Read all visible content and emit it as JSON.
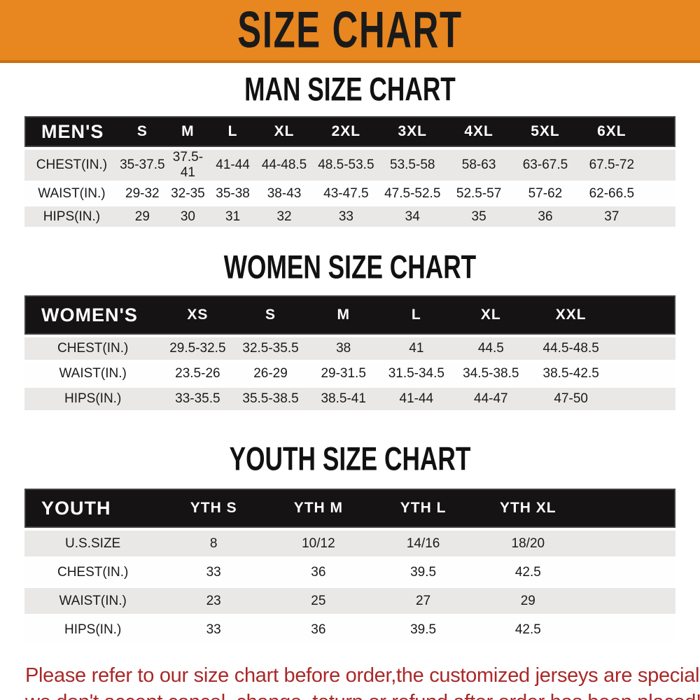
{
  "banner": {
    "title": "SIZE CHART"
  },
  "sections": [
    {
      "title": "MAN SIZE CHART",
      "header": {
        "label": "MEN'S",
        "columns": [
          "S",
          "M",
          "L",
          "XL",
          "2XL",
          "3XL",
          "4XL",
          "5XL",
          "6XL"
        ]
      },
      "rows": [
        {
          "label": "CHEST(IN.)",
          "values": [
            "35-37.5",
            "37.5-41",
            "41-44",
            "44-48.5",
            "48.5-53.5",
            "53.5-58",
            "58-63",
            "63-67.5",
            "67.5-72"
          ]
        },
        {
          "label": "WAIST(IN.)",
          "values": [
            "29-32",
            "32-35",
            "35-38",
            "38-43",
            "43-47.5",
            "47.5-52.5",
            "52.5-57",
            "57-62",
            "62-66.5"
          ]
        },
        {
          "label": "HIPS(IN.)",
          "values": [
            "29",
            "30",
            "31",
            "32",
            "33",
            "34",
            "35",
            "36",
            "37"
          ]
        }
      ]
    },
    {
      "title": "WOMEN SIZE CHART",
      "header": {
        "label": "WOMEN'S",
        "columns": [
          "XS",
          "S",
          "M",
          "L",
          "XL",
          "XXL"
        ]
      },
      "rows": [
        {
          "label": "CHEST(IN.)",
          "values": [
            "29.5-32.5",
            "32.5-35.5",
            "38",
            "41",
            "44.5",
            "44.5-48.5"
          ]
        },
        {
          "label": "WAIST(IN.)",
          "values": [
            "23.5-26",
            "26-29",
            "29-31.5",
            "31.5-34.5",
            "34.5-38.5",
            "38.5-42.5"
          ]
        },
        {
          "label": "HIPS(IN.)",
          "values": [
            "33-35.5",
            "35.5-38.5",
            "38.5-41",
            "41-44",
            "44-47",
            "47-50"
          ]
        }
      ]
    },
    {
      "title": "YOUTH SIZE CHART",
      "header": {
        "label": "YOUTH",
        "columns": [
          "YTH S",
          "YTH M",
          "YTH L",
          "YTH XL"
        ]
      },
      "rows": [
        {
          "label": "U.S.SIZE",
          "values": [
            "8",
            "10/12",
            "14/16",
            "18/20"
          ]
        },
        {
          "label": "CHEST(IN.)",
          "values": [
            "33",
            "36",
            "39.5",
            "42.5"
          ]
        },
        {
          "label": "WAIST(IN.)",
          "values": [
            "23",
            "25",
            "27",
            "29"
          ]
        },
        {
          "label": "HIPS(IN.)",
          "values": [
            "33",
            "36",
            "39.5",
            "42.5"
          ]
        }
      ]
    }
  ],
  "footer": {
    "line1": "Please refer to our size chart before order,the customized jerseys are special products,",
    "line2": "we don't accept cancel, change, teturn or refund after order has been placed!"
  },
  "colors": {
    "banner_bg": "#E8861F",
    "banner_edge": "#C96F12",
    "banner_text": "#1A1A1A",
    "header_bar_bg": "#151313",
    "header_bar_text": "#FFFFFF",
    "stripe_gray": "#E9E8E6",
    "stripe_white": "#FEFEFE",
    "body_text": "#1A1A1A",
    "notice_red": "#AA2828"
  }
}
